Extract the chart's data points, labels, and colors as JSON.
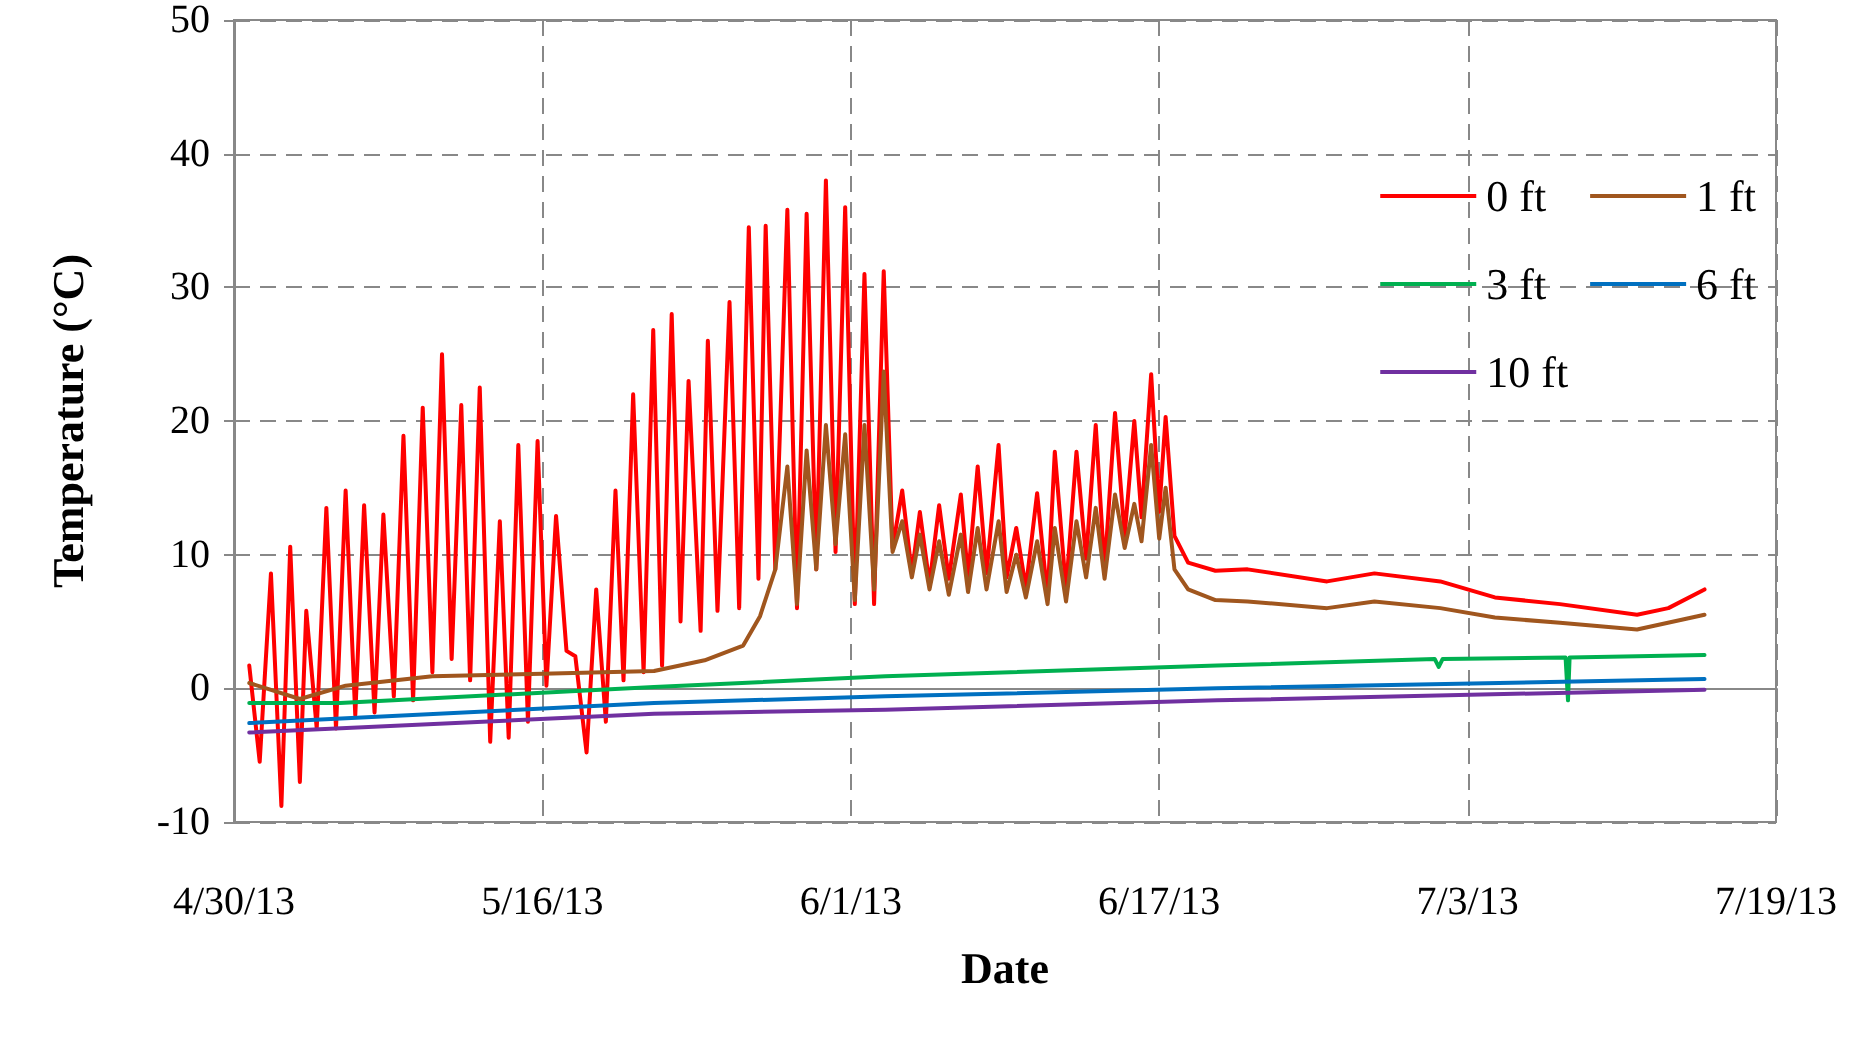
{
  "chart_data": {
    "type": "line",
    "xlabel": "Date",
    "ylabel": "Temperature (°C)",
    "xlim": [
      "2013-04-30",
      "2013-07-19"
    ],
    "xticks": [
      {
        "value": "2013-04-30",
        "label": "4/30/13"
      },
      {
        "value": "2013-05-16",
        "label": "5/16/13"
      },
      {
        "value": "2013-06-01",
        "label": "6/1/13"
      },
      {
        "value": "2013-06-17",
        "label": "6/17/13"
      },
      {
        "value": "2013-07-03",
        "label": "7/3/13"
      },
      {
        "value": "2013-07-19",
        "label": "7/19/13"
      }
    ],
    "ylim": [
      -10,
      50
    ],
    "yticks": [
      -10,
      0,
      10,
      20,
      30,
      40,
      50
    ],
    "grid": true,
    "legend": "top right",
    "marker": "none",
    "line_style": "solid",
    "series": [
      {
        "name": "0 ft",
        "color": "#ff0000",
        "x": [
          "2013-04-30T19:00",
          "2013-05-01T08:00",
          "2013-05-01T22:00",
          "2013-05-02T11:00",
          "2013-05-02T22:00",
          "2013-05-03T10:00",
          "2013-05-03T18:00",
          "2013-05-04T07:00",
          "2013-05-04T19:00",
          "2013-05-05T07:00",
          "2013-05-05T19:00",
          "2013-05-06T07:00",
          "2013-05-06T18:00",
          "2013-05-07T07:00",
          "2013-05-07T18:00",
          "2013-05-08T07:00",
          "2013-05-08T19:00",
          "2013-05-09T07:00",
          "2013-05-09T19:00",
          "2013-05-10T07:00",
          "2013-05-10T19:00",
          "2013-05-11T07:00",
          "2013-05-11T19:00",
          "2013-05-12T06:00",
          "2013-05-12T18:00",
          "2013-05-13T07:00",
          "2013-05-13T19:00",
          "2013-05-14T06:00",
          "2013-05-14T18:00",
          "2013-05-15T06:00",
          "2013-05-15T18:00",
          "2013-05-16T05:00",
          "2013-05-16T17:00",
          "2013-05-17T06:00",
          "2013-05-17T17:00",
          "2013-05-18T07:00",
          "2013-05-18T19:00",
          "2013-05-19T07:00",
          "2013-05-19T19:00",
          "2013-05-20T05:00",
          "2013-05-20T17:00",
          "2013-05-21T06:00",
          "2013-05-21T18:00",
          "2013-05-22T05:00",
          "2013-05-22T17:00",
          "2013-05-23T04:00",
          "2013-05-23T14:00",
          "2013-05-24T05:00",
          "2013-05-24T14:00",
          "2013-05-25T02:00",
          "2013-05-25T17:00",
          "2013-05-26T05:00",
          "2013-05-26T17:00",
          "2013-05-27T05:00",
          "2013-05-27T14:00",
          "2013-05-28T02:00",
          "2013-05-28T17:00",
          "2013-05-29T05:00",
          "2013-05-29T17:00",
          "2013-05-30T05:00",
          "2013-05-30T17:00",
          "2013-05-31T05:00",
          "2013-05-31T17:00",
          "2013-06-01T05:00",
          "2013-06-01T17:00",
          "2013-06-02T05:00",
          "2013-06-02T17:00",
          "2013-06-03T04:00",
          "2013-06-03T16:00",
          "2013-06-04T04:00",
          "2013-06-04T14:00",
          "2013-06-05T02:00",
          "2013-06-05T14:00",
          "2013-06-06T02:00",
          "2013-06-06T17:00",
          "2013-06-07T02:00",
          "2013-06-07T14:00",
          "2013-06-08T01:00",
          "2013-06-08T16:00",
          "2013-06-09T02:00",
          "2013-06-09T14:00",
          "2013-06-10T02:00",
          "2013-06-10T16:00",
          "2013-06-11T05:00",
          "2013-06-11T14:00",
          "2013-06-12T04:00",
          "2013-06-12T17:00",
          "2013-06-13T05:00",
          "2013-06-13T17:00",
          "2013-06-14T04:00",
          "2013-06-14T17:00",
          "2013-06-15T05:00",
          "2013-06-15T17:00",
          "2013-06-16T02:00",
          "2013-06-16T14:00",
          "2013-06-17T00:00",
          "2013-06-17T08:00",
          "2013-06-17T19:00",
          "2013-06-18T12:00",
          "2013-06-19T22:00",
          "2013-06-21T14:00",
          "2013-06-25T17:00",
          "2013-06-28T04:00",
          "2013-07-01T14:00",
          "2013-07-04T10:00",
          "2013-07-07T19:00",
          "2013-07-11T19:00",
          "2013-07-13T10:00",
          "2013-07-15T07:00"
        ],
        "values": [
          1.7,
          -5.5,
          8.6,
          -8.8,
          10.6,
          -7,
          5.8,
          -3,
          13.5,
          -3,
          14.8,
          -2,
          13.7,
          -1.8,
          13,
          -0.6,
          18.9,
          -0.9,
          21,
          1.2,
          25,
          2.2,
          21.2,
          0.6,
          22.5,
          -4,
          12.5,
          -3.7,
          18.2,
          -2.5,
          18.5,
          0.2,
          12.9,
          2.8,
          2.4,
          -4.8,
          7.4,
          -2.5,
          14.8,
          0.6,
          22,
          1.2,
          26.8,
          1.7,
          28,
          5,
          23,
          4.3,
          26,
          5.8,
          28.9,
          6,
          34.5,
          8.2,
          34.6,
          8.9,
          35.8,
          6,
          35.5,
          8.9,
          38,
          10.2,
          36,
          6.3,
          31,
          6.3,
          31.2,
          10.5,
          14.8,
          8.6,
          13.2,
          7.8,
          13.7,
          8.2,
          14.5,
          8.3,
          16.6,
          8.6,
          18.2,
          8.3,
          12,
          7.5,
          14.6,
          6.8,
          17.7,
          7.4,
          17.7,
          9.7,
          19.7,
          8.9,
          20.6,
          11.4,
          20,
          12.8,
          23.5,
          13.2,
          20.3,
          11.4,
          9.4,
          8.8,
          8.9,
          8,
          8.6,
          8,
          6.8,
          6.3,
          5.5,
          6,
          7.4
        ]
      },
      {
        "name": "1 ft",
        "color": "#a0561e",
        "x": [
          "2013-04-30T19:00",
          "2013-05-03T10:00",
          "2013-05-05T19:00",
          "2013-05-10T07:00",
          "2013-05-16T00:00",
          "2013-05-21T19:00",
          "2013-05-24T10:00",
          "2013-05-26T10:00",
          "2013-05-27T07:00",
          "2013-05-28T02:00",
          "2013-05-28T17:00",
          "2013-05-29T05:00",
          "2013-05-29T17:00",
          "2013-05-30T05:00",
          "2013-05-30T17:00",
          "2013-05-31T05:00",
          "2013-05-31T17:00",
          "2013-06-01T05:00",
          "2013-06-01T17:00",
          "2013-06-02T05:00",
          "2013-06-02T17:00",
          "2013-06-03T04:00",
          "2013-06-03T16:00",
          "2013-06-04T04:00",
          "2013-06-04T14:00",
          "2013-06-05T02:00",
          "2013-06-05T14:00",
          "2013-06-06T02:00",
          "2013-06-06T17:00",
          "2013-06-07T02:00",
          "2013-06-07T14:00",
          "2013-06-08T01:00",
          "2013-06-08T16:00",
          "2013-06-09T02:00",
          "2013-06-09T14:00",
          "2013-06-10T02:00",
          "2013-06-10T16:00",
          "2013-06-11T05:00",
          "2013-06-11T14:00",
          "2013-06-12T04:00",
          "2013-06-12T17:00",
          "2013-06-13T05:00",
          "2013-06-13T17:00",
          "2013-06-14T04:00",
          "2013-06-14T17:00",
          "2013-06-15T05:00",
          "2013-06-15T17:00",
          "2013-06-16T02:00",
          "2013-06-16T14:00",
          "2013-06-17T00:00",
          "2013-06-17T08:00",
          "2013-06-17T19:00",
          "2013-06-18T12:00",
          "2013-06-19T22:00",
          "2013-06-21T14:00",
          "2013-06-25T17:00",
          "2013-06-28T04:00",
          "2013-07-01T14:00",
          "2013-07-04T10:00",
          "2013-07-07T19:00",
          "2013-07-11T19:00",
          "2013-07-15T07:00"
        ],
        "values": [
          0.4,
          -0.8,
          0.2,
          0.9,
          1.1,
          1.3,
          2.1,
          3.2,
          5.4,
          8.9,
          16.6,
          6.3,
          17.8,
          8.9,
          19.7,
          10.8,
          19,
          6.6,
          19.7,
          7.4,
          23.7,
          10.2,
          12.5,
          8.3,
          11.5,
          7.4,
          11,
          7,
          11.5,
          7.2,
          12,
          7.4,
          12.5,
          7.2,
          10,
          6.8,
          11,
          6.3,
          12,
          6.5,
          12.5,
          8.3,
          13.5,
          8.2,
          14.5,
          10.5,
          13.8,
          11,
          18.2,
          11.2,
          15,
          8.9,
          7.4,
          6.6,
          6.5,
          6,
          6.5,
          6,
          5.3,
          4.9,
          4.4,
          5.5
        ]
      },
      {
        "name": "3 ft",
        "color": "#00b050",
        "x": [
          "2013-04-30T19:00",
          "2013-05-05T12:00",
          "2013-05-21T19:00",
          "2013-06-02T19:00",
          "2013-06-20T00:00",
          "2013-07-01T07:00",
          "2013-07-01T12:00",
          "2013-07-01T17:00",
          "2013-07-08T02:00",
          "2013-07-08T05:00",
          "2013-07-08T07:00",
          "2013-07-15T07:00"
        ],
        "values": [
          -1.1,
          -1.1,
          0.1,
          0.9,
          1.7,
          2.2,
          1.6,
          2.2,
          2.3,
          -0.9,
          2.3,
          2.5
        ]
      },
      {
        "name": "6 ft",
        "color": "#0070c0",
        "x": [
          "2013-04-30T19:00",
          "2013-05-21T19:00",
          "2013-06-02T19:00",
          "2013-06-20T00:00",
          "2013-07-15T07:00"
        ],
        "values": [
          -2.6,
          -1.1,
          -0.6,
          0,
          0.7
        ]
      },
      {
        "name": "10 ft",
        "color": "#7030a0",
        "x": [
          "2013-04-30T19:00",
          "2013-05-21T19:00",
          "2013-06-02T19:00",
          "2013-06-20T00:00",
          "2013-07-15T07:00"
        ],
        "values": [
          -3.3,
          -1.9,
          -1.6,
          -0.9,
          -0.1
        ]
      }
    ]
  }
}
